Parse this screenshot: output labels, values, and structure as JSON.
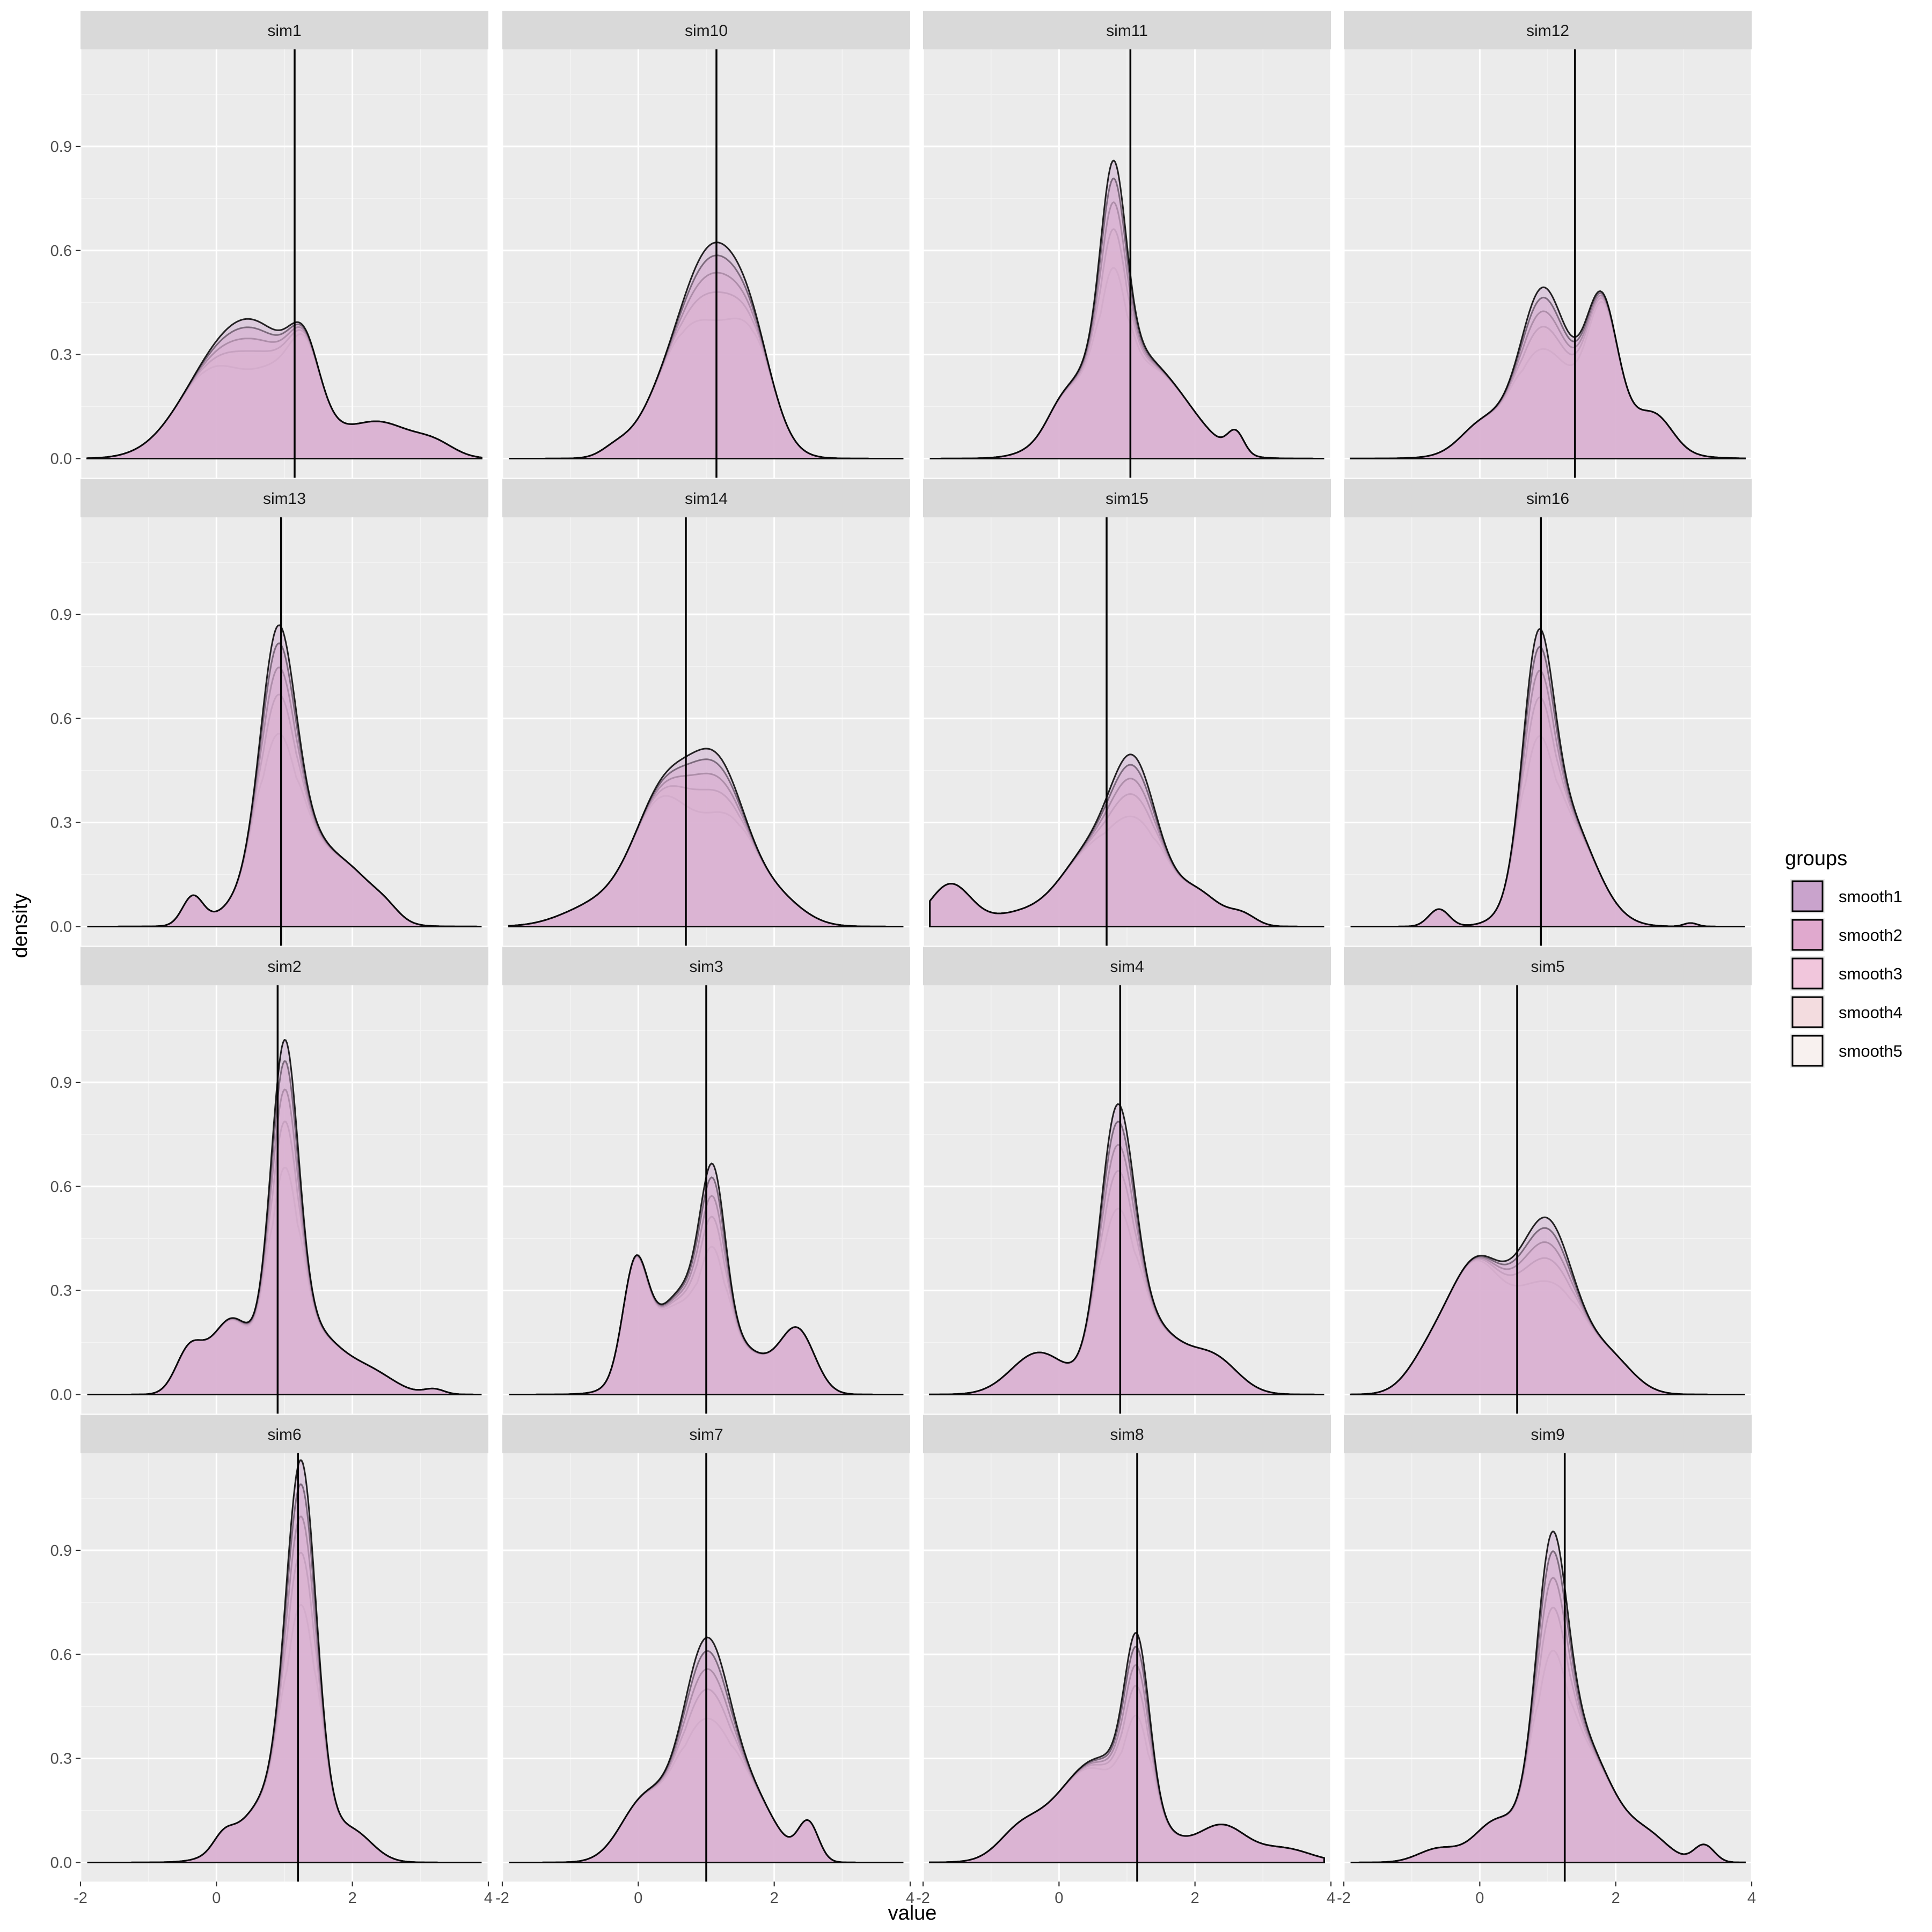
{
  "chart_data": {
    "type": "area",
    "subtype": "faceted density plot (small multiples) with vertical reference line per panel",
    "xlabel": "value",
    "ylabel": "density",
    "xlim": [
      -2,
      4
    ],
    "ylim": [
      0,
      1.1
    ],
    "x_ticks": [
      "-2",
      "0",
      "2",
      "4"
    ],
    "y_ticks": [
      "0.0",
      "0.3",
      "0.6",
      "0.9"
    ],
    "x_tick_values": [
      -2,
      0,
      2,
      4
    ],
    "y_tick_values": [
      0,
      0.3,
      0.6,
      0.9
    ],
    "grid": true,
    "facet_layout": {
      "rows": 4,
      "cols": 4
    },
    "legend": {
      "title": "groups",
      "position": "right",
      "items": [
        {
          "label": "smooth1",
          "color": "#C9A3CC"
        },
        {
          "label": "smooth2",
          "color": "#E0A9CE"
        },
        {
          "label": "smooth3",
          "color": "#F1C6DC"
        },
        {
          "label": "smooth4",
          "color": "#F3DCDF"
        },
        {
          "label": "smooth5",
          "color": "#F8F1EF"
        }
      ]
    },
    "peak_scale": [
      1.0,
      0.94,
      0.86,
      0.77,
      0.64
    ],
    "line_colors": [
      "#000000",
      "#1f1f1f",
      "#3e3e3e",
      "#5e5e5e",
      "#858585"
    ],
    "panels": [
      {
        "label": "sim1",
        "vline": 1.15,
        "x_range": [
          -1.9,
          3.9
        ],
        "components": [
          [
            -0.1,
            0.55,
            0.18
          ],
          [
            0.7,
            0.6,
            0.32
          ],
          [
            1.3,
            0.22,
            0.17
          ],
          [
            2.4,
            0.45,
            0.1
          ],
          [
            3.2,
            0.3,
            0.04
          ]
        ]
      },
      {
        "label": "sim10",
        "vline": 1.15,
        "x_range": [
          -1.9,
          3.9
        ],
        "components": [
          [
            -0.35,
            0.2,
            0.02
          ],
          [
            1.1,
            0.5,
            0.59
          ],
          [
            1.7,
            0.3,
            0.15
          ],
          [
            0.3,
            0.4,
            0.08
          ]
        ]
      },
      {
        "label": "sim11",
        "vline": 1.05,
        "x_range": [
          -1.9,
          3.9
        ],
        "components": [
          [
            0.8,
            0.18,
            0.52
          ],
          [
            0.7,
            0.55,
            0.3
          ],
          [
            1.6,
            0.5,
            0.16
          ],
          [
            2.6,
            0.12,
            0.06
          ],
          [
            0.0,
            0.2,
            0.04
          ]
        ]
      },
      {
        "label": "sim12",
        "vline": 1.4,
        "x_range": [
          -1.9,
          3.9
        ],
        "components": [
          [
            0.9,
            0.3,
            0.3
          ],
          [
            1.8,
            0.22,
            0.3
          ],
          [
            1.3,
            0.75,
            0.22
          ],
          [
            0.0,
            0.3,
            0.06
          ],
          [
            2.6,
            0.25,
            0.08
          ]
        ]
      },
      {
        "label": "sim13",
        "vline": 0.95,
        "x_range": [
          -1.9,
          3.9
        ],
        "components": [
          [
            0.9,
            0.25,
            0.62
          ],
          [
            1.2,
            0.6,
            0.28
          ],
          [
            -0.35,
            0.15,
            0.08
          ],
          [
            2.1,
            0.3,
            0.06
          ],
          [
            2.5,
            0.2,
            0.03
          ]
        ]
      },
      {
        "label": "sim14",
        "vline": 0.7,
        "x_range": [
          -1.9,
          3.9
        ],
        "components": [
          [
            0.4,
            0.45,
            0.38
          ],
          [
            1.2,
            0.4,
            0.4
          ],
          [
            -0.6,
            0.5,
            0.06
          ],
          [
            2.0,
            0.4,
            0.08
          ]
        ]
      },
      {
        "label": "sim15",
        "vline": 0.7,
        "x_range": [
          -1.9,
          3.9
        ],
        "components": [
          [
            1.1,
            0.35,
            0.45
          ],
          [
            0.4,
            0.4,
            0.18
          ],
          [
            -1.6,
            0.3,
            0.12
          ],
          [
            -0.5,
            0.5,
            0.04
          ],
          [
            2.0,
            0.35,
            0.1
          ],
          [
            2.7,
            0.2,
            0.03
          ]
        ]
      },
      {
        "label": "sim16",
        "vline": 0.9,
        "x_range": [
          -1.9,
          3.9
        ],
        "components": [
          [
            0.85,
            0.22,
            0.6
          ],
          [
            1.2,
            0.45,
            0.34
          ],
          [
            -0.6,
            0.15,
            0.05
          ],
          [
            3.1,
            0.1,
            0.01
          ]
        ]
      },
      {
        "label": "sim2",
        "vline": 0.9,
        "x_range": [
          -1.9,
          3.9
        ],
        "components": [
          [
            1.0,
            0.2,
            0.85
          ],
          [
            1.3,
            0.5,
            0.2
          ],
          [
            -0.4,
            0.2,
            0.12
          ],
          [
            0.2,
            0.3,
            0.2
          ],
          [
            2.3,
            0.35,
            0.05
          ],
          [
            3.2,
            0.15,
            0.015
          ]
        ]
      },
      {
        "label": "sim3",
        "vline": 1.0,
        "x_range": [
          -1.9,
          3.9
        ],
        "components": [
          [
            -0.05,
            0.18,
            0.3
          ],
          [
            1.1,
            0.18,
            0.42
          ],
          [
            0.7,
            0.5,
            0.3
          ],
          [
            2.35,
            0.25,
            0.17
          ],
          [
            1.7,
            0.4,
            0.08
          ]
        ]
      },
      {
        "label": "sim4",
        "vline": 0.9,
        "x_range": [
          -1.9,
          3.9
        ],
        "components": [
          [
            0.85,
            0.25,
            0.7
          ],
          [
            1.3,
            0.5,
            0.2
          ],
          [
            -0.3,
            0.4,
            0.12
          ],
          [
            2.3,
            0.35,
            0.09
          ]
        ]
      },
      {
        "label": "sim5",
        "vline": 0.55,
        "x_range": [
          -1.9,
          3.9
        ],
        "components": [
          [
            -0.05,
            0.45,
            0.38
          ],
          [
            1.0,
            0.4,
            0.48
          ],
          [
            1.9,
            0.35,
            0.1
          ],
          [
            -0.8,
            0.3,
            0.06
          ]
        ]
      },
      {
        "label": "sim6",
        "vline": 1.2,
        "x_range": [
          -1.9,
          3.9
        ],
        "components": [
          [
            1.25,
            0.22,
            1.0
          ],
          [
            0.9,
            0.5,
            0.2
          ],
          [
            0.1,
            0.15,
            0.04
          ],
          [
            2.0,
            0.3,
            0.08
          ]
        ]
      },
      {
        "label": "sim7",
        "vline": 1.0,
        "x_range": [
          -1.9,
          3.9
        ],
        "components": [
          [
            1.0,
            0.35,
            0.62
          ],
          [
            0.1,
            0.35,
            0.18
          ],
          [
            1.7,
            0.35,
            0.16
          ],
          [
            2.5,
            0.15,
            0.11
          ]
        ]
      },
      {
        "label": "sim8",
        "vline": 1.15,
        "x_range": [
          -1.9,
          3.9
        ],
        "components": [
          [
            1.15,
            0.18,
            0.45
          ],
          [
            0.6,
            0.65,
            0.3
          ],
          [
            2.4,
            0.35,
            0.1
          ],
          [
            -0.6,
            0.3,
            0.06
          ],
          [
            3.3,
            0.4,
            0.04
          ]
        ]
      },
      {
        "label": "sim9",
        "vline": 1.25,
        "x_range": [
          -1.9,
          3.9
        ],
        "components": [
          [
            1.05,
            0.22,
            0.65
          ],
          [
            1.4,
            0.5,
            0.38
          ],
          [
            0.2,
            0.3,
            0.1
          ],
          [
            -0.6,
            0.3,
            0.04
          ],
          [
            2.5,
            0.3,
            0.06
          ],
          [
            3.3,
            0.15,
            0.05
          ]
        ]
      }
    ]
  }
}
